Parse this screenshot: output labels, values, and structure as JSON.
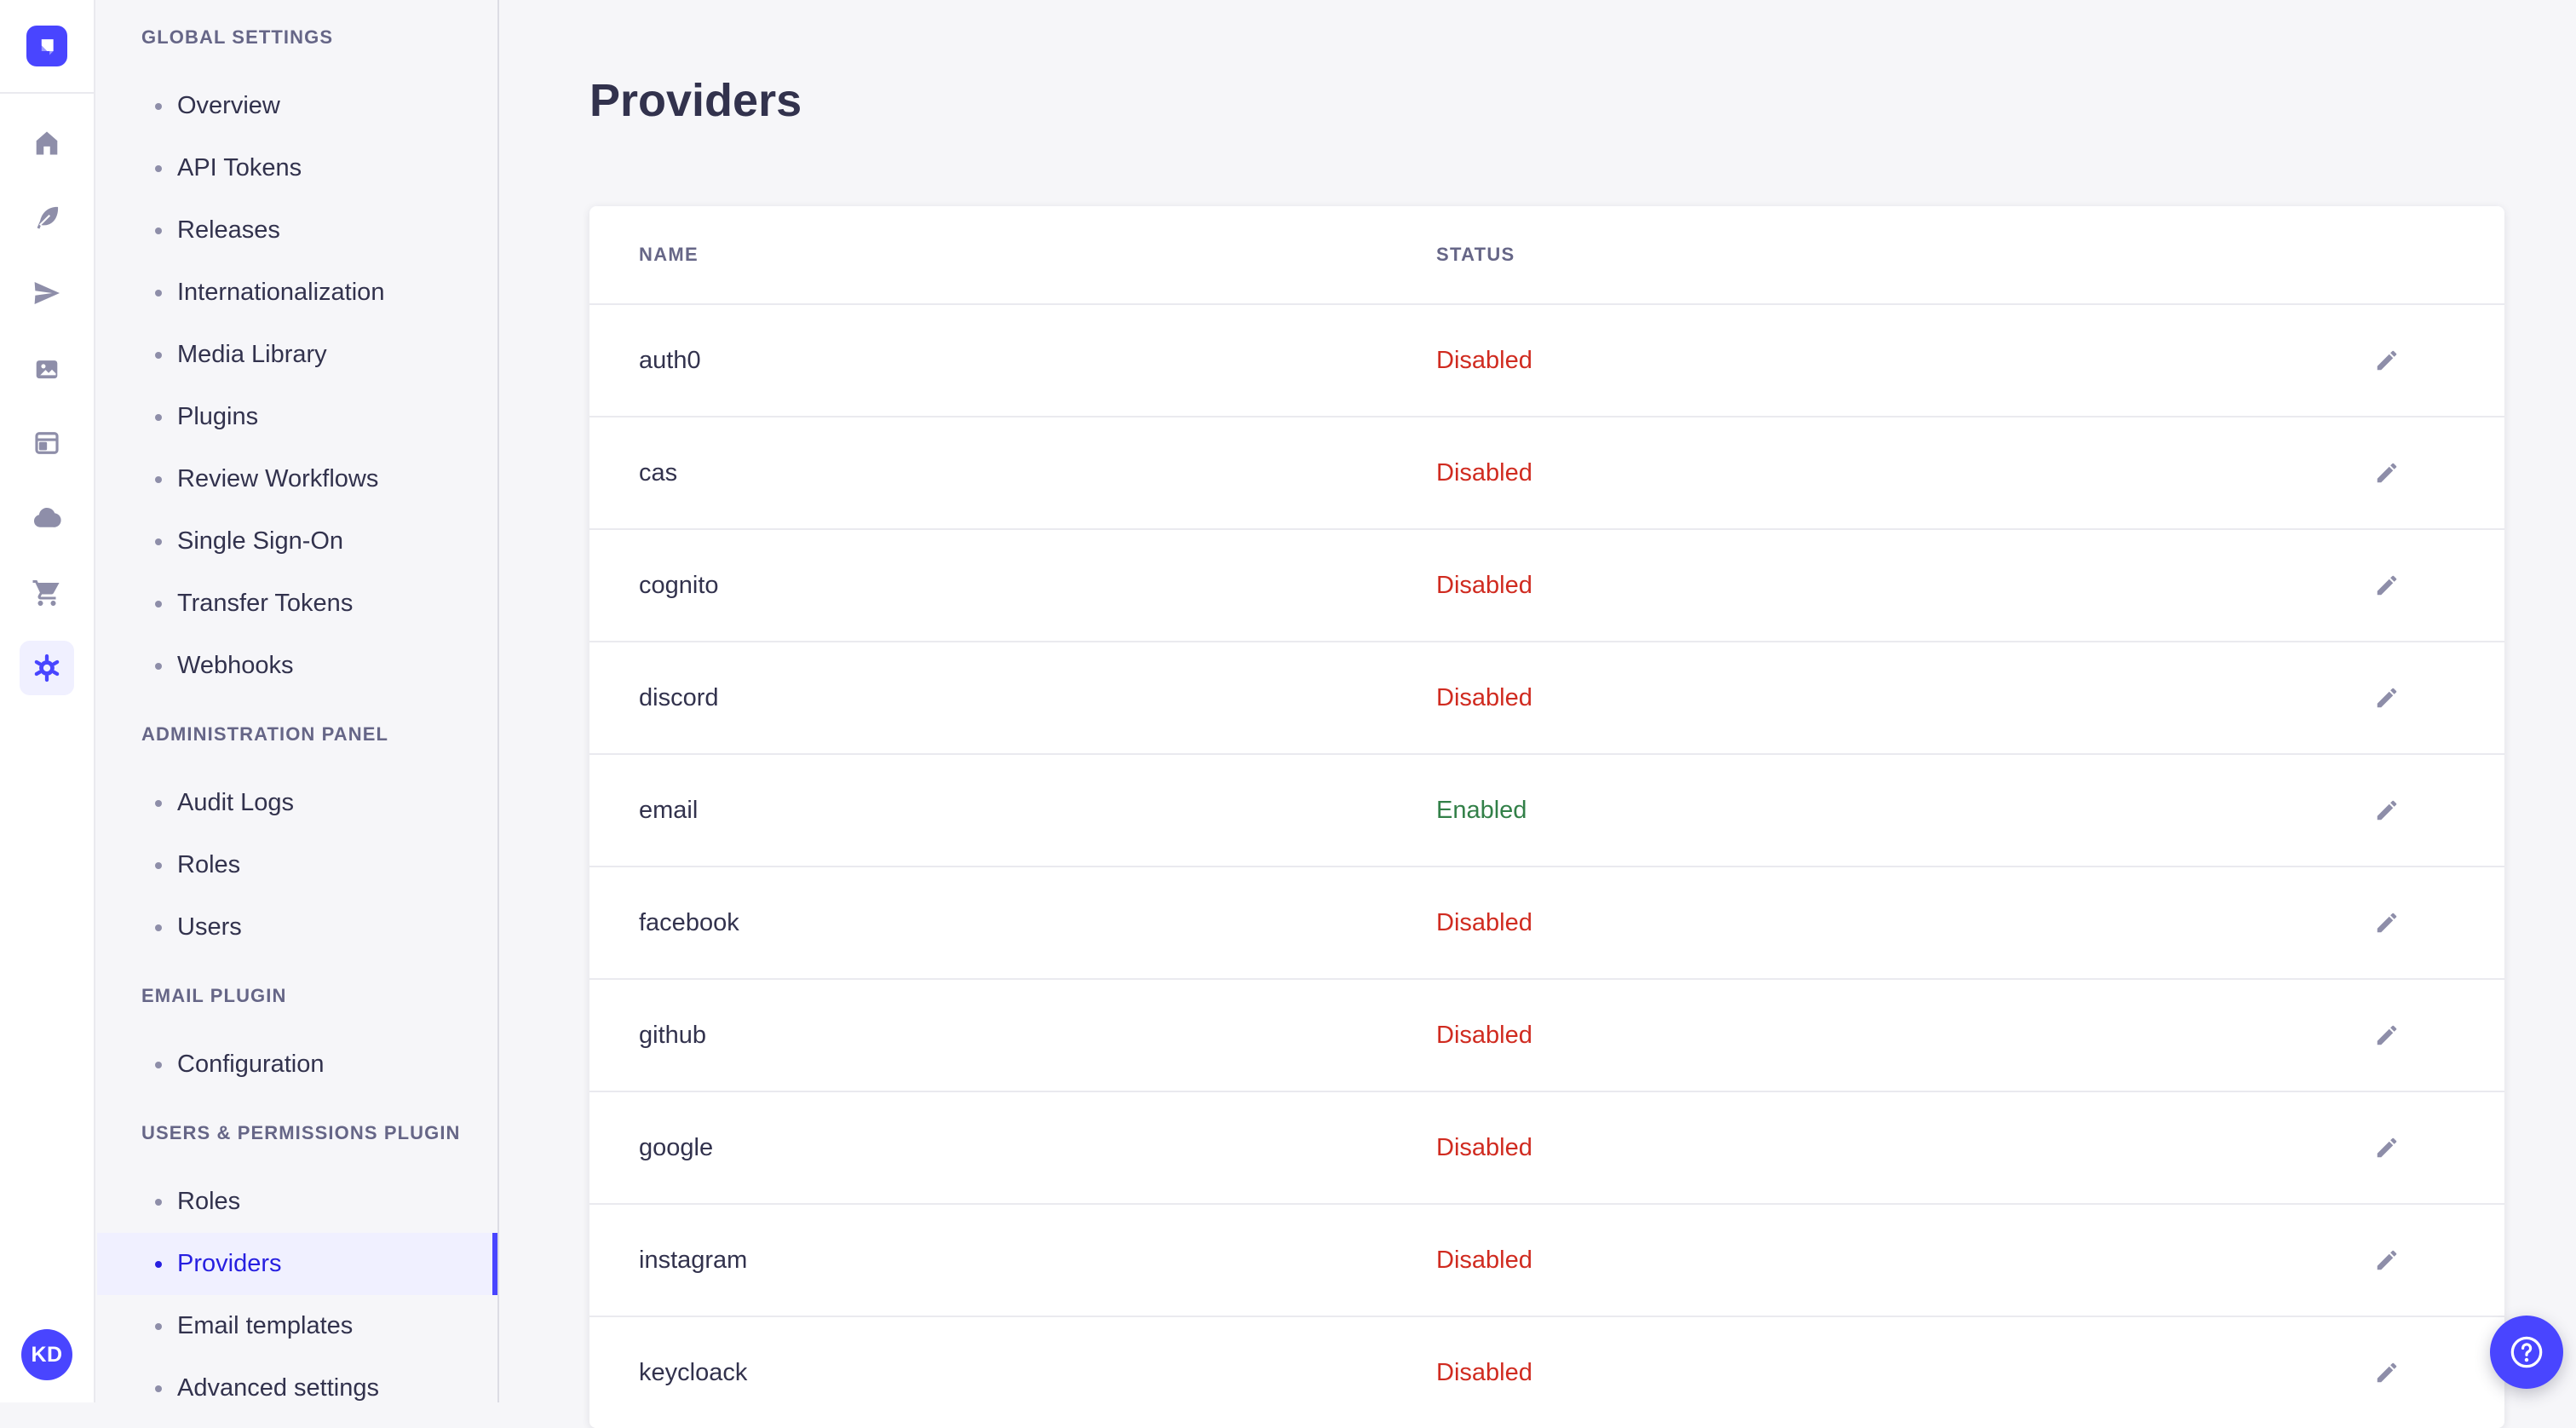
{
  "page": {
    "title": "Providers"
  },
  "user": {
    "initials": "KD"
  },
  "icon_rail": {
    "logo_icon": "strapi-logo",
    "icons": [
      "home-icon",
      "feather-icon",
      "send-icon",
      "media-library-icon",
      "layout-icon",
      "cloud-icon",
      "cart-icon",
      "settings-gear-icon"
    ],
    "active_icon": "settings-gear-icon"
  },
  "sidebar": {
    "sections": [
      {
        "heading": "GLOBAL SETTINGS",
        "items": [
          {
            "label": "Overview"
          },
          {
            "label": "API Tokens"
          },
          {
            "label": "Releases"
          },
          {
            "label": "Internationalization"
          },
          {
            "label": "Media Library"
          },
          {
            "label": "Plugins"
          },
          {
            "label": "Review Workflows"
          },
          {
            "label": "Single Sign-On"
          },
          {
            "label": "Transfer Tokens"
          },
          {
            "label": "Webhooks"
          }
        ]
      },
      {
        "heading": "ADMINISTRATION PANEL",
        "items": [
          {
            "label": "Audit Logs"
          },
          {
            "label": "Roles"
          },
          {
            "label": "Users"
          }
        ]
      },
      {
        "heading": "EMAIL PLUGIN",
        "items": [
          {
            "label": "Configuration"
          }
        ]
      },
      {
        "heading": "USERS & PERMISSIONS PLUGIN",
        "items": [
          {
            "label": "Roles"
          },
          {
            "label": "Providers",
            "active": true
          },
          {
            "label": "Email templates"
          },
          {
            "label": "Advanced settings"
          }
        ]
      }
    ]
  },
  "table": {
    "columns": [
      "NAME",
      "STATUS"
    ],
    "edit_icon": "pencil-icon",
    "rows": [
      {
        "name": "auth0",
        "status": "Disabled"
      },
      {
        "name": "cas",
        "status": "Disabled"
      },
      {
        "name": "cognito",
        "status": "Disabled"
      },
      {
        "name": "discord",
        "status": "Disabled"
      },
      {
        "name": "email",
        "status": "Enabled"
      },
      {
        "name": "facebook",
        "status": "Disabled"
      },
      {
        "name": "github",
        "status": "Disabled"
      },
      {
        "name": "google",
        "status": "Disabled"
      },
      {
        "name": "instagram",
        "status": "Disabled"
      },
      {
        "name": "keycloack",
        "status": "Disabled"
      }
    ]
  },
  "help": {
    "icon": "question-circle-icon"
  },
  "colors": {
    "primary": "#4945FF",
    "primary_dark": "#271FE0",
    "primary_light": "#F0F0FF",
    "danger": "#D02B20",
    "success": "#328048",
    "app_bg": "#F6F6F9",
    "card_bg": "#FFFFFF",
    "border": "#EAEAEF",
    "text": "#32324D",
    "muted": "#666687",
    "icon": "#8E8EA9"
  }
}
